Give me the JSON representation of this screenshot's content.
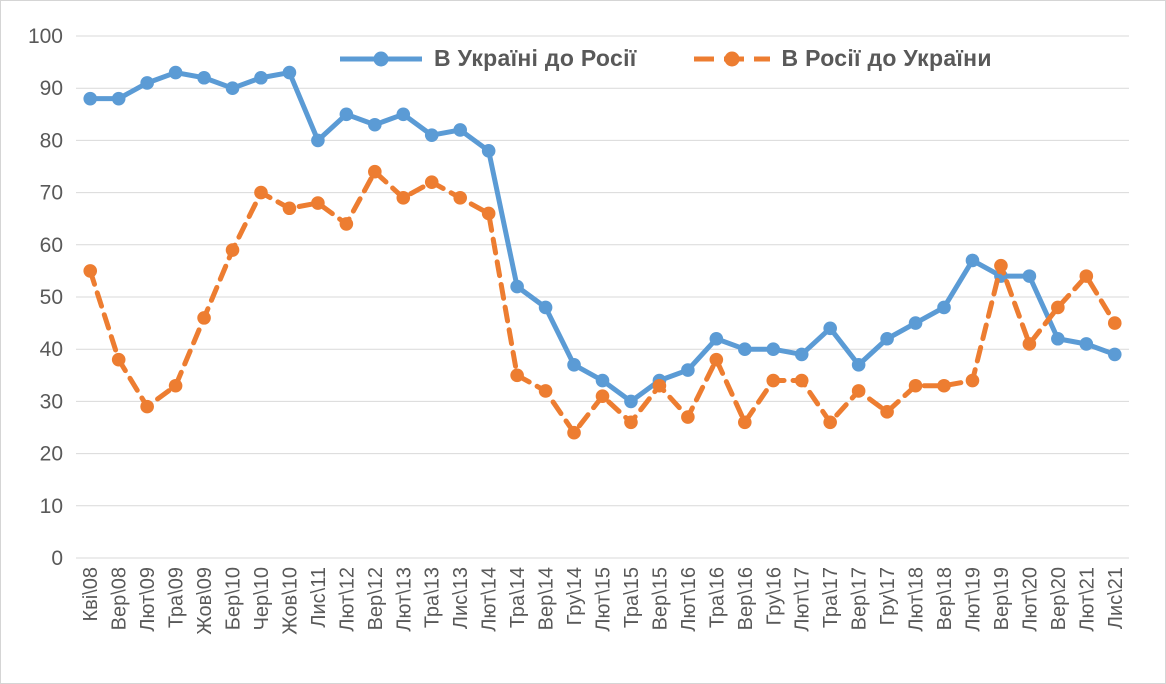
{
  "chart_data": {
    "type": "line",
    "title": "",
    "xlabel": "",
    "ylabel": "",
    "categories": [
      "Кві\\08",
      "Вер\\08",
      "Лют\\09",
      "Тра\\09",
      "Жов\\09",
      "Бер\\10",
      "Чер\\10",
      "Жов\\10",
      "Лис\\11",
      "Лют\\12",
      "Вер\\12",
      "Лют\\13",
      "Тра\\13",
      "Лис\\13",
      "Лют\\14",
      "Тра\\14",
      "Вер\\14",
      "Гру\\14",
      "Лют\\15",
      "Тра\\15",
      "Вер\\15",
      "Лют\\16",
      "Тра\\16",
      "Вер\\16",
      "Гру\\16",
      "Лют\\17",
      "Тра\\17",
      "Вер\\17",
      "Гру\\17",
      "Лют\\18",
      "Вер\\18",
      "Лют\\19",
      "Вер\\19",
      "Лют\\20",
      "Вер\\20",
      "Лют\\21",
      "Лис\\21"
    ],
    "series": [
      {
        "name": "В Україні до Росії",
        "color": "#5B9BD5",
        "line_style": "solid",
        "values": [
          88,
          88,
          91,
          93,
          92,
          90,
          92,
          93,
          80,
          85,
          83,
          85,
          81,
          82,
          78,
          52,
          48,
          37,
          34,
          30,
          34,
          36,
          42,
          40,
          40,
          39,
          44,
          37,
          42,
          45,
          48,
          57,
          54,
          54,
          42,
          41,
          39
        ]
      },
      {
        "name": "В Росії до України",
        "color": "#ED7D31",
        "line_style": "dashed",
        "values": [
          55,
          38,
          29,
          33,
          46,
          59,
          70,
          67,
          68,
          64,
          74,
          69,
          72,
          69,
          66,
          35,
          32,
          24,
          31,
          26,
          33,
          27,
          38,
          26,
          34,
          34,
          26,
          32,
          28,
          33,
          33,
          34,
          56,
          41,
          48,
          54,
          45
        ]
      }
    ],
    "ylim": [
      0,
      100
    ],
    "ytick_step": 10,
    "ytick_labels": [
      "0",
      "10",
      "20",
      "30",
      "40",
      "50",
      "60",
      "70",
      "80",
      "90",
      "100"
    ],
    "grid": "horizontal",
    "legend_position": "top-center",
    "gridline_color": "#D9D9D9",
    "axis_text_color": "#595959"
  }
}
